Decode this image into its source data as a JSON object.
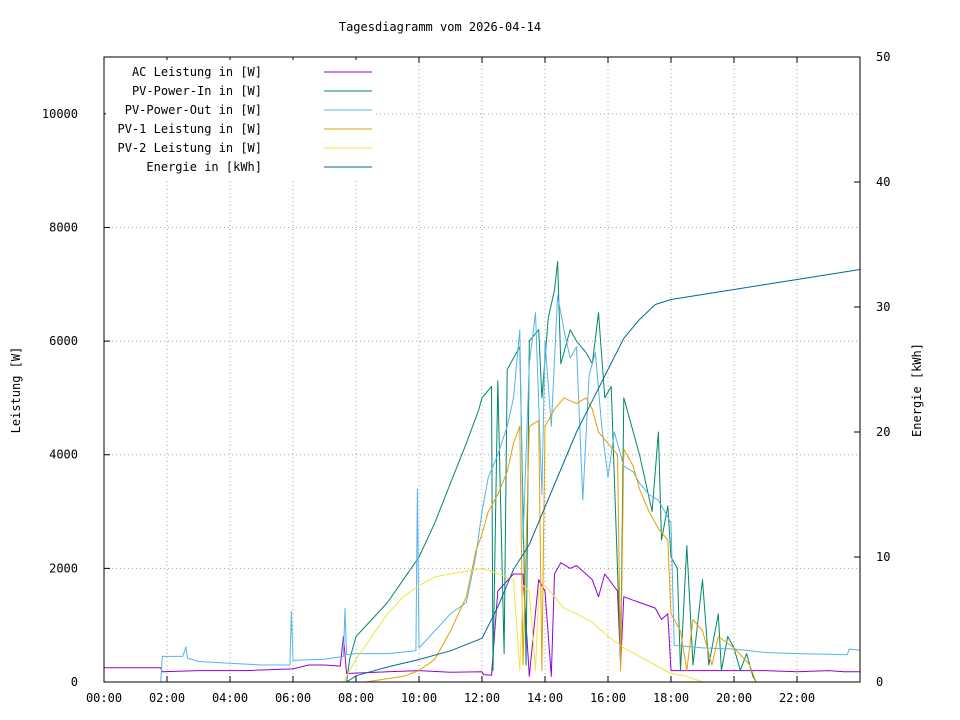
{
  "chart_data": {
    "type": "line",
    "title": "Tagesdiagramm vom 2026-04-14",
    "ylabel": "Leistung [W]",
    "y2label": "Energie [kWh]",
    "xlim": [
      0,
      24
    ],
    "ylim": [
      0,
      11000
    ],
    "y2lim": [
      0,
      50
    ],
    "x_ticks": [
      {
        "value": 0,
        "label": "00:00"
      },
      {
        "value": 2,
        "label": "02:00"
      },
      {
        "value": 4,
        "label": "04:00"
      },
      {
        "value": 6,
        "label": "06:00"
      },
      {
        "value": 8,
        "label": "08:00"
      },
      {
        "value": 10,
        "label": "10:00"
      },
      {
        "value": 12,
        "label": "12:00"
      },
      {
        "value": 14,
        "label": "14:00"
      },
      {
        "value": 16,
        "label": "16:00"
      },
      {
        "value": 18,
        "label": "18:00"
      },
      {
        "value": 20,
        "label": "20:00"
      },
      {
        "value": 22,
        "label": "22:00"
      }
    ],
    "y_ticks": [
      {
        "value": 0,
        "label": "0"
      },
      {
        "value": 2000,
        "label": "2000"
      },
      {
        "value": 4000,
        "label": "4000"
      },
      {
        "value": 6000,
        "label": "6000"
      },
      {
        "value": 8000,
        "label": "8000"
      },
      {
        "value": 10000,
        "label": "10000"
      }
    ],
    "y2_ticks": [
      {
        "value": 0,
        "label": "0"
      },
      {
        "value": 10,
        "label": "10"
      },
      {
        "value": 20,
        "label": "20"
      },
      {
        "value": 30,
        "label": "30"
      },
      {
        "value": 40,
        "label": "40"
      },
      {
        "value": 50,
        "label": "50"
      }
    ],
    "grid": true,
    "legend_position": "top-left",
    "series": [
      {
        "name": "AC Leistung in [W]",
        "color": "#9400d3",
        "axis": "y",
        "points": [
          [
            0,
            250
          ],
          [
            1.8,
            250
          ],
          [
            1.85,
            180
          ],
          [
            3,
            200
          ],
          [
            4.5,
            200
          ],
          [
            6,
            230
          ],
          [
            6.5,
            300
          ],
          [
            7,
            300
          ],
          [
            7.5,
            280
          ],
          [
            7.6,
            800
          ],
          [
            7.7,
            150
          ],
          [
            9,
            180
          ],
          [
            10,
            200
          ],
          [
            11,
            170
          ],
          [
            12,
            180
          ],
          [
            12.05,
            130
          ],
          [
            12.3,
            120
          ],
          [
            12.5,
            1600
          ],
          [
            13,
            1900
          ],
          [
            13.3,
            1900
          ],
          [
            13.5,
            100
          ],
          [
            13.8,
            1800
          ],
          [
            14,
            1600
          ],
          [
            14.2,
            100
          ],
          [
            14.3,
            1900
          ],
          [
            14.5,
            2100
          ],
          [
            14.8,
            2000
          ],
          [
            15,
            2050
          ],
          [
            15.3,
            1900
          ],
          [
            15.5,
            1800
          ],
          [
            15.7,
            1500
          ],
          [
            15.9,
            1900
          ],
          [
            16.3,
            1600
          ],
          [
            16.4,
            300
          ],
          [
            16.5,
            1500
          ],
          [
            17,
            1400
          ],
          [
            17.5,
            1300
          ],
          [
            17.7,
            1100
          ],
          [
            17.9,
            1200
          ],
          [
            18,
            200
          ],
          [
            18.5,
            200
          ],
          [
            19,
            200
          ],
          [
            20,
            200
          ],
          [
            21,
            200
          ],
          [
            22,
            180
          ],
          [
            23,
            200
          ],
          [
            23.5,
            180
          ],
          [
            24,
            180
          ]
        ]
      },
      {
        "name": "PV-Power-In in [W]",
        "color": "#00886a",
        "axis": "y",
        "points": [
          [
            7.7,
            0
          ],
          [
            7.8,
            400
          ],
          [
            8,
            800
          ],
          [
            8.5,
            1100
          ],
          [
            9,
            1400
          ],
          [
            9.5,
            1800
          ],
          [
            10,
            2200
          ],
          [
            10.5,
            2800
          ],
          [
            11,
            3500
          ],
          [
            11.5,
            4200
          ],
          [
            11.9,
            4800
          ],
          [
            12,
            5000
          ],
          [
            12.3,
            5200
          ],
          [
            12.35,
            200
          ],
          [
            12.5,
            5300
          ],
          [
            12.7,
            500
          ],
          [
            12.8,
            5500
          ],
          [
            13,
            5700
          ],
          [
            13.2,
            5900
          ],
          [
            13.4,
            300
          ],
          [
            13.5,
            6000
          ],
          [
            13.8,
            6200
          ],
          [
            13.9,
            5000
          ],
          [
            14.1,
            6400
          ],
          [
            14.3,
            6900
          ],
          [
            14.4,
            7400
          ],
          [
            14.5,
            5600
          ],
          [
            14.8,
            6200
          ],
          [
            15,
            6000
          ],
          [
            15.3,
            5800
          ],
          [
            15.5,
            5600
          ],
          [
            15.7,
            6500
          ],
          [
            15.9,
            5000
          ],
          [
            16.1,
            5200
          ],
          [
            16.4,
            400
          ],
          [
            16.5,
            5000
          ],
          [
            17,
            4000
          ],
          [
            17.4,
            3000
          ],
          [
            17.6,
            4400
          ],
          [
            17.7,
            2500
          ],
          [
            17.9,
            3100
          ],
          [
            18,
            2200
          ],
          [
            18.2,
            2000
          ],
          [
            18.3,
            200
          ],
          [
            18.5,
            2400
          ],
          [
            18.7,
            300
          ],
          [
            19,
            1800
          ],
          [
            19.2,
            300
          ],
          [
            19.5,
            1200
          ],
          [
            19.6,
            200
          ],
          [
            19.8,
            800
          ],
          [
            20,
            600
          ],
          [
            20.2,
            200
          ],
          [
            20.4,
            500
          ],
          [
            20.6,
            100
          ],
          [
            20.7,
            0
          ],
          [
            24,
            0
          ]
        ]
      },
      {
        "name": "PV-Power-Out in [W]",
        "color": "#56b4e9",
        "axis": "y",
        "points": [
          [
            0,
            0
          ],
          [
            1.8,
            0
          ],
          [
            1.85,
            450
          ],
          [
            2.5,
            450
          ],
          [
            2.6,
            620
          ],
          [
            2.65,
            420
          ],
          [
            3,
            360
          ],
          [
            4,
            330
          ],
          [
            5,
            300
          ],
          [
            5.9,
            300
          ],
          [
            5.95,
            1250
          ],
          [
            6,
            380
          ],
          [
            7,
            400
          ],
          [
            7.6,
            450
          ],
          [
            7.65,
            1300
          ],
          [
            7.7,
            480
          ],
          [
            8,
            500
          ],
          [
            9,
            500
          ],
          [
            9.9,
            550
          ],
          [
            9.95,
            3400
          ],
          [
            10,
            600
          ],
          [
            10.5,
            900
          ],
          [
            11,
            1200
          ],
          [
            11.5,
            1400
          ],
          [
            11.8,
            2200
          ],
          [
            12,
            3000
          ],
          [
            12.2,
            3600
          ],
          [
            12.5,
            4000
          ],
          [
            12.8,
            4500
          ],
          [
            13,
            5000
          ],
          [
            13.2,
            6200
          ],
          [
            13.3,
            2500
          ],
          [
            13.5,
            5600
          ],
          [
            13.7,
            6500
          ],
          [
            13.9,
            3300
          ],
          [
            14,
            6000
          ],
          [
            14.2,
            4500
          ],
          [
            14.4,
            6800
          ],
          [
            14.6,
            6200
          ],
          [
            14.8,
            5700
          ],
          [
            15,
            5900
          ],
          [
            15.2,
            3200
          ],
          [
            15.4,
            5400
          ],
          [
            15.6,
            5800
          ],
          [
            15.8,
            4500
          ],
          [
            16,
            3600
          ],
          [
            16.2,
            4400
          ],
          [
            16.5,
            3800
          ],
          [
            16.8,
            3700
          ],
          [
            17,
            3500
          ],
          [
            17.3,
            3300
          ],
          [
            17.6,
            3200
          ],
          [
            17.8,
            3000
          ],
          [
            18,
            2800
          ],
          [
            18.1,
            650
          ],
          [
            19,
            600
          ],
          [
            20,
            580
          ],
          [
            20.5,
            550
          ],
          [
            21,
            520
          ],
          [
            22,
            500
          ],
          [
            23,
            490
          ],
          [
            23.6,
            480
          ],
          [
            23.65,
            580
          ],
          [
            24,
            560
          ]
        ]
      },
      {
        "name": "PV-1 Leistung in [W]",
        "color": "#e69f00",
        "axis": "y",
        "points": [
          [
            8.3,
            0
          ],
          [
            9.5,
            100
          ],
          [
            10,
            200
          ],
          [
            10.5,
            400
          ],
          [
            11,
            900
          ],
          [
            11.5,
            1500
          ],
          [
            11.8,
            2300
          ],
          [
            12,
            2600
          ],
          [
            12.2,
            3000
          ],
          [
            12.5,
            3300
          ],
          [
            12.8,
            3700
          ],
          [
            13,
            4200
          ],
          [
            13.2,
            4500
          ],
          [
            13.3,
            300
          ],
          [
            13.5,
            4500
          ],
          [
            13.8,
            4600
          ],
          [
            13.9,
            200
          ],
          [
            14,
            4500
          ],
          [
            14.3,
            4800
          ],
          [
            14.6,
            5000
          ],
          [
            15,
            4900
          ],
          [
            15.3,
            5000
          ],
          [
            15.5,
            4800
          ],
          [
            15.7,
            4400
          ],
          [
            16,
            4200
          ],
          [
            16.3,
            4000
          ],
          [
            16.4,
            200
          ],
          [
            16.5,
            4100
          ],
          [
            16.8,
            3800
          ],
          [
            17,
            3400
          ],
          [
            17.3,
            3000
          ],
          [
            17.6,
            2700
          ],
          [
            17.9,
            2500
          ],
          [
            18,
            1200
          ],
          [
            18.3,
            900
          ],
          [
            18.5,
            200
          ],
          [
            18.7,
            1100
          ],
          [
            19,
            900
          ],
          [
            19.3,
            300
          ],
          [
            19.5,
            800
          ],
          [
            20,
            600
          ],
          [
            20.5,
            300
          ],
          [
            20.7,
            0
          ],
          [
            24,
            0
          ]
        ]
      },
      {
        "name": "PV-2 Leistung in [W]",
        "color": "#f0e442",
        "axis": "y",
        "points": [
          [
            7.6,
            0
          ],
          [
            8,
            400
          ],
          [
            8.5,
            800
          ],
          [
            9,
            1200
          ],
          [
            9.5,
            1500
          ],
          [
            10,
            1700
          ],
          [
            10.5,
            1850
          ],
          [
            11,
            1900
          ],
          [
            11.5,
            1950
          ],
          [
            12,
            2000
          ],
          [
            12.3,
            1950
          ],
          [
            12.5,
            1900
          ],
          [
            12.8,
            1850
          ],
          [
            13,
            1800
          ],
          [
            13.2,
            200
          ],
          [
            13.3,
            1700
          ],
          [
            13.5,
            1600
          ],
          [
            13.7,
            200
          ],
          [
            13.8,
            1650
          ],
          [
            14,
            1700
          ],
          [
            14.3,
            1500
          ],
          [
            14.6,
            1300
          ],
          [
            15,
            1200
          ],
          [
            15.5,
            1050
          ],
          [
            16,
            800
          ],
          [
            16.5,
            600
          ],
          [
            17,
            450
          ],
          [
            17.5,
            300
          ],
          [
            18,
            150
          ],
          [
            18.5,
            100
          ],
          [
            19,
            0
          ],
          [
            24,
            0
          ]
        ]
      },
      {
        "name": "Energie in [kWh]",
        "color": "#006a9a",
        "axis": "y2",
        "points": [
          [
            0,
            0
          ],
          [
            7.7,
            0
          ],
          [
            8,
            0.5
          ],
          [
            9,
            1.2
          ],
          [
            10,
            1.8
          ],
          [
            11,
            2.5
          ],
          [
            12,
            3.5
          ],
          [
            12.5,
            6
          ],
          [
            13,
            9
          ],
          [
            13.5,
            11
          ],
          [
            14,
            14
          ],
          [
            14.5,
            17
          ],
          [
            15,
            20
          ],
          [
            15.5,
            22.5
          ],
          [
            16,
            25
          ],
          [
            16.5,
            27.5
          ],
          [
            17,
            29
          ],
          [
            17.5,
            30.2
          ],
          [
            18,
            30.6
          ],
          [
            19,
            31
          ],
          [
            20,
            31.4
          ],
          [
            21,
            31.8
          ],
          [
            22,
            32.2
          ],
          [
            23,
            32.6
          ],
          [
            24,
            33
          ]
        ]
      }
    ]
  }
}
